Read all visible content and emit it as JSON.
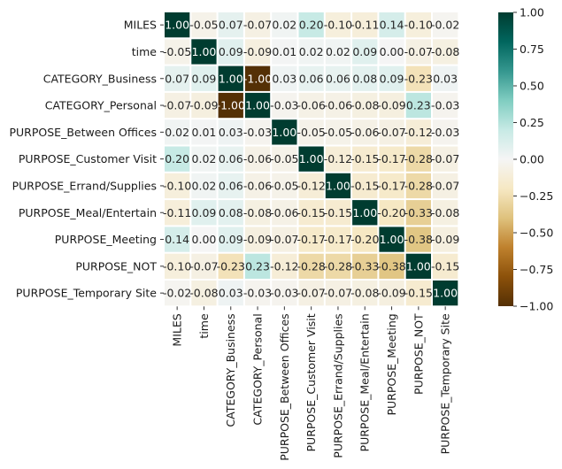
{
  "chart_data": {
    "type": "heatmap",
    "title": "",
    "xlabel": "",
    "ylabel": "",
    "row_labels": [
      "MILES",
      "time",
      "CATEGORY_Business",
      "CATEGORY_Personal",
      "PURPOSE_Between Offices",
      "PURPOSE_Customer Visit",
      "PURPOSE_Errand/Supplies",
      "PURPOSE_Meal/Entertain",
      "PURPOSE_Meeting",
      "PURPOSE_NOT",
      "PURPOSE_Temporary Site"
    ],
    "col_labels": [
      "MILES",
      "time",
      "CATEGORY_Business",
      "CATEGORY_Personal",
      "PURPOSE_Between Offices",
      "PURPOSE_Customer Visit",
      "PURPOSE_Errand/Supplies",
      "PURPOSE_Meal/Entertain",
      "PURPOSE_Meeting",
      "PURPOSE_NOT",
      "PURPOSE_Temporary Site"
    ],
    "values": [
      [
        1.0,
        -0.05,
        0.07,
        -0.07,
        0.02,
        0.2,
        -0.1,
        -0.11,
        0.14,
        -0.1,
        -0.02
      ],
      [
        -0.05,
        1.0,
        0.09,
        -0.09,
        0.01,
        0.02,
        0.02,
        0.09,
        0.0,
        -0.07,
        -0.08
      ],
      [
        0.07,
        0.09,
        1.0,
        -1.0,
        0.03,
        0.06,
        0.06,
        0.08,
        0.09,
        -0.23,
        0.03
      ],
      [
        -0.07,
        -0.09,
        -1.0,
        1.0,
        -0.03,
        -0.06,
        -0.06,
        -0.08,
        -0.09,
        0.23,
        -0.03
      ],
      [
        0.02,
        0.01,
        0.03,
        -0.03,
        1.0,
        -0.05,
        -0.05,
        -0.06,
        -0.07,
        -0.12,
        -0.03
      ],
      [
        0.2,
        0.02,
        0.06,
        -0.06,
        -0.05,
        1.0,
        -0.12,
        -0.15,
        -0.17,
        -0.28,
        -0.07
      ],
      [
        -0.1,
        0.02,
        0.06,
        -0.06,
        -0.05,
        -0.12,
        1.0,
        -0.15,
        -0.17,
        -0.28,
        -0.07
      ],
      [
        -0.11,
        0.09,
        0.08,
        -0.08,
        -0.06,
        -0.15,
        -0.15,
        1.0,
        -0.2,
        -0.33,
        -0.08
      ],
      [
        0.14,
        0.0,
        0.09,
        -0.09,
        -0.07,
        -0.17,
        -0.17,
        -0.2,
        1.0,
        -0.38,
        -0.09
      ],
      [
        -0.1,
        -0.07,
        -0.23,
        0.23,
        -0.12,
        -0.28,
        -0.28,
        -0.33,
        -0.38,
        1.0,
        -0.15
      ],
      [
        -0.02,
        -0.08,
        0.03,
        -0.03,
        -0.03,
        -0.07,
        -0.07,
        -0.08,
        -0.09,
        -0.15,
        1.0
      ]
    ],
    "vmin": -1.0,
    "vmax": 1.0,
    "colormap": "BrBG",
    "annotated": true,
    "annotation_format": "0.00",
    "colorbar": {
      "ticks": [
        1.0,
        0.75,
        0.5,
        0.25,
        0.0,
        -0.25,
        -0.5,
        -0.75,
        -1.0
      ],
      "tick_labels": [
        "1.00",
        "0.75",
        "0.50",
        "0.25",
        "0.00",
        "−0.25",
        "−0.50",
        "−0.75",
        "−1.00"
      ],
      "placement": "right"
    },
    "grid": false,
    "cell_separator_color": "#ffffff"
  }
}
